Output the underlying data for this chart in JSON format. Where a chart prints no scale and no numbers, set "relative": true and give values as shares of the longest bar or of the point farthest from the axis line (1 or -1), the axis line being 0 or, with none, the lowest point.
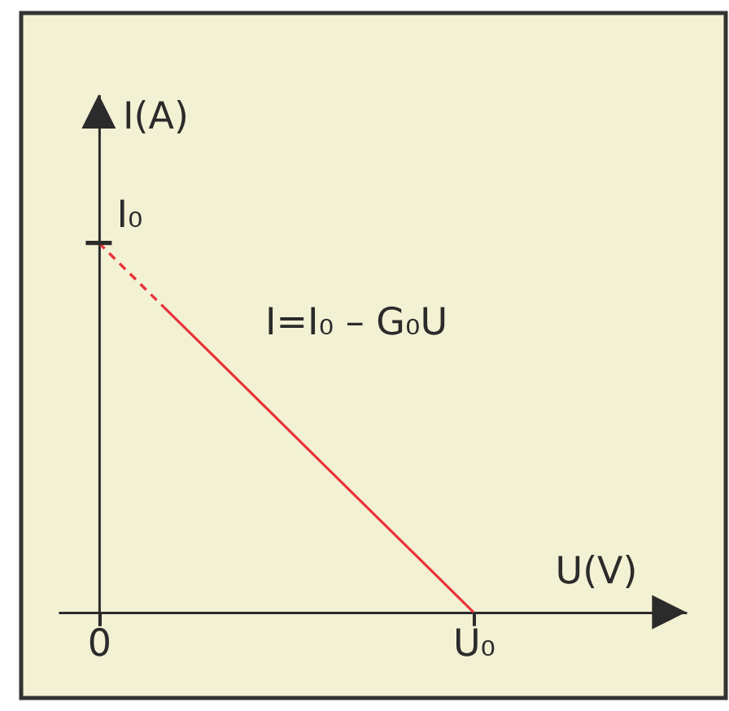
{
  "chart_data": {
    "type": "line",
    "relative": true,
    "xlabel": "U(V)",
    "ylabel": "I(A)",
    "categories": [
      "0",
      null,
      null,
      null,
      null,
      null,
      "U₀"
    ],
    "series": [
      {
        "color": "#e8333a",
        "line_style": "dashed",
        "values": [
          1,
          0.833,
          null,
          null,
          null,
          null,
          null
        ]
      },
      {
        "color": "#e8333a",
        "line_style": "solid",
        "values": [
          null,
          0.833,
          0.667,
          0.5,
          0.333,
          0.167,
          0
        ]
      }
    ],
    "annotations": [
      {
        "text": "I₀",
        "x": "0",
        "y": 1
      },
      "I=I₀ – G₀U"
    ]
  }
}
